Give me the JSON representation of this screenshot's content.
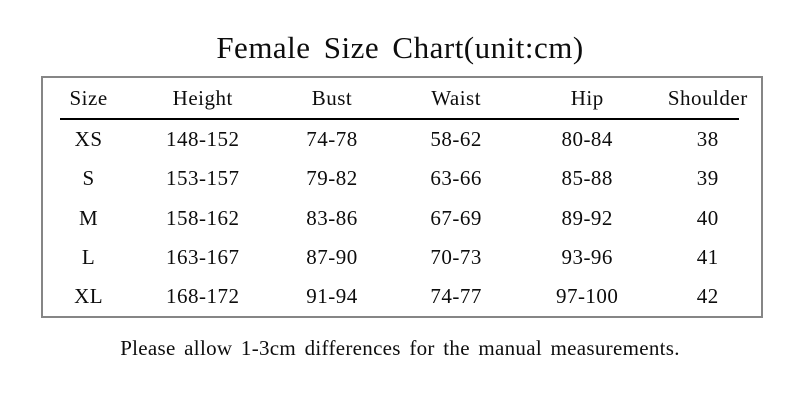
{
  "title": "Female Size Chart(unit:cm)",
  "footer": "Please allow 1-3cm differences for the manual measurements.",
  "colors": {
    "text": "#0d0d0d",
    "table_border": "#868686",
    "header_rule": "#000000",
    "background": "#ffffff"
  },
  "chart_data": {
    "type": "table",
    "title": "Female Size Chart(unit:cm)",
    "unit": "cm",
    "columns": [
      "Size",
      "Height",
      "Bust",
      "Waist",
      "Hip",
      "Shoulder"
    ],
    "rows": [
      [
        "XS",
        "148-152",
        "74-78",
        "58-62",
        "80-84",
        "38"
      ],
      [
        "S",
        "153-157",
        "79-82",
        "63-66",
        "85-88",
        "39"
      ],
      [
        "M",
        "158-162",
        "83-86",
        "67-69",
        "89-92",
        "40"
      ],
      [
        "L",
        "163-167",
        "87-90",
        "70-73",
        "93-96",
        "41"
      ],
      [
        "XL",
        "168-172",
        "91-94",
        "74-77",
        "97-100",
        "42"
      ]
    ],
    "note": "Please allow 1-3cm differences for the manual measurements."
  }
}
